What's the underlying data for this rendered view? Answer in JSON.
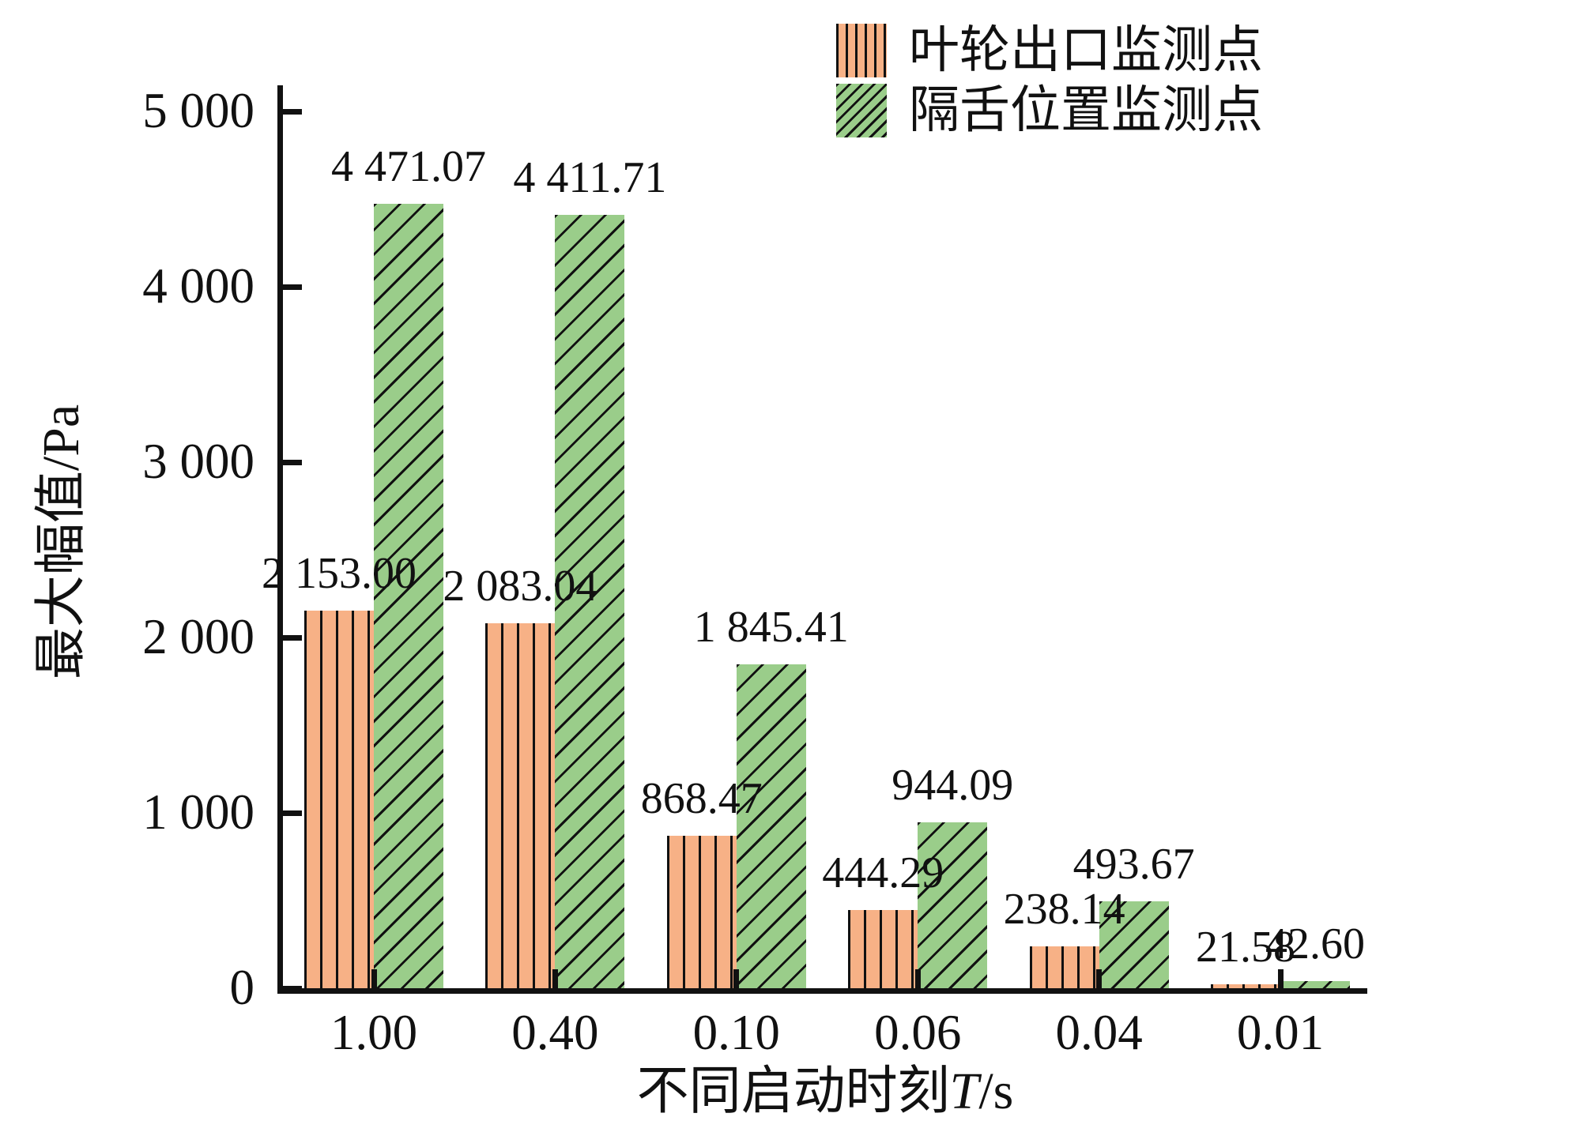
{
  "figure": {
    "background": "#ffffff"
  },
  "legend": {
    "position": "top-right",
    "items": [
      {
        "label": "叶轮出口监测点",
        "swatch_color": "#F7B186",
        "swatch_hatch": "vertical"
      },
      {
        "label": "隔舌位置监测点",
        "swatch_color": "#9ACD8A",
        "swatch_hatch": "diagonal-forward"
      }
    ]
  },
  "axes": {
    "y_title": "最大幅值/Pa",
    "x_title_prefix": "不同启动时刻",
    "x_title_var": "T",
    "x_title_suffix": "/s",
    "axis_color": "#111111",
    "tick_direction": "in"
  },
  "chart_data": {
    "type": "bar",
    "title": "",
    "xlabel": "不同启动时刻T/s",
    "ylabel": "最大幅值/Pa",
    "categories": [
      "1.00",
      "0.40",
      "0.10",
      "0.06",
      "0.04",
      "0.01"
    ],
    "series": [
      {
        "name": "叶轮出口监测点",
        "color": "#F7B186",
        "hatch": "vertical",
        "values": [
          2153.0,
          2083.04,
          868.47,
          444.29,
          238.14,
          21.58
        ],
        "value_labels": [
          "2 153.00",
          "2 083.04",
          "868.47",
          "444.29",
          "238.14",
          "21.58"
        ]
      },
      {
        "name": "隔舌位置监测点",
        "color": "#9ACD8A",
        "hatch": "diagonal-forward",
        "values": [
          4471.07,
          4411.71,
          1845.41,
          944.09,
          493.67,
          42.6
        ],
        "value_labels": [
          "4 471.07",
          "4 411.71",
          "1 845.41",
          "944.09",
          "493.67",
          "42.60"
        ]
      }
    ],
    "ylim": [
      0,
      5000
    ],
    "y_ticks": [
      {
        "value": 0,
        "label": "0"
      },
      {
        "value": 1000,
        "label": "1 000"
      },
      {
        "value": 2000,
        "label": "2 000"
      },
      {
        "value": 3000,
        "label": "3 000"
      },
      {
        "value": 4000,
        "label": "4 000"
      },
      {
        "value": 5000,
        "label": "5 000"
      }
    ],
    "grid": false,
    "legend_position": "top-right"
  }
}
